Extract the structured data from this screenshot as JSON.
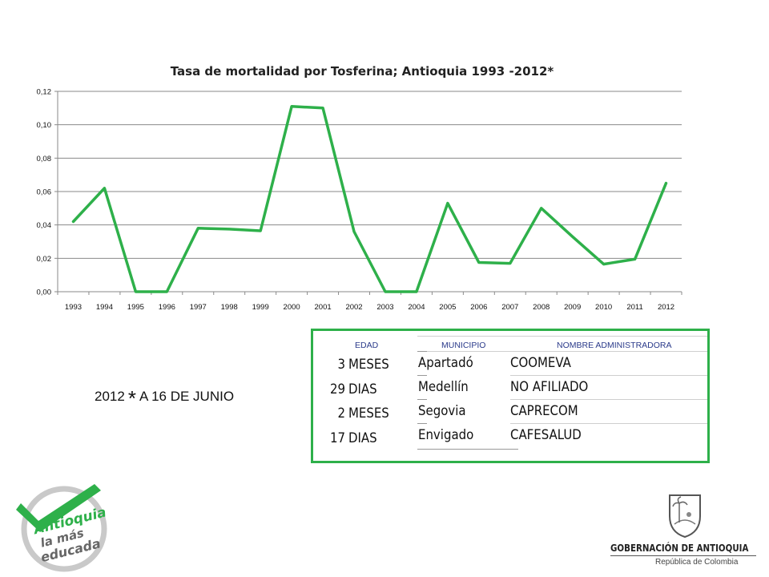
{
  "chart_data": {
    "type": "line",
    "title": "Tasa de mortalidad por Tosferina; Antioquia  1993 -2012*",
    "xlabel": "",
    "ylabel": "",
    "categories": [
      "1993",
      "1994",
      "1995",
      "1996",
      "1997",
      "1998",
      "1999",
      "2000",
      "2001",
      "2002",
      "2003",
      "2004",
      "2005",
      "2006",
      "2007",
      "2008",
      "2009",
      "2010",
      "2011",
      "2012"
    ],
    "series": [
      {
        "values": [
          0.042,
          0.062,
          0.0,
          0.0,
          0.038,
          0.0375,
          0.0365,
          0.111,
          0.11,
          0.036,
          0.0,
          0.0,
          0.053,
          0.0175,
          0.017,
          0.05,
          0.033,
          0.0165,
          0.0195,
          0.065
        ]
      }
    ],
    "ylim": [
      0,
      0.12
    ],
    "yticks": [
      "0,00",
      "0,02",
      "0,04",
      "0,06",
      "0,08",
      "0,10",
      "0,12"
    ],
    "grid": true,
    "line_color": "#2eb04a"
  },
  "note": {
    "year": "2012",
    "star": "*",
    "text": "A 16 DE JUNIO"
  },
  "cases": {
    "headers": {
      "edad": "EDAD",
      "municipio": "MUNICIPIO",
      "administradora": "NOMBRE  ADMINISTRADORA"
    },
    "rows": [
      {
        "edad_num": "3",
        "edad_unit": "MESES",
        "municipio": "Apartadó",
        "administradora": "COOMEVA"
      },
      {
        "edad_num": "29",
        "edad_unit": "DIAS",
        "municipio": "Medellín",
        "administradora": "NO AFILIADO"
      },
      {
        "edad_num": "2",
        "edad_unit": "MESES",
        "municipio": "Segovia",
        "administradora": "CAPRECOM"
      },
      {
        "edad_num": "17",
        "edad_unit": "DIAS",
        "municipio": "Envigado",
        "administradora": "CAFESALUD"
      }
    ]
  },
  "logo_left": {
    "line1": "Antioquia",
    "line2": "la más",
    "line3": "educada"
  },
  "logo_right": {
    "name": "GOBERNACIÓN DE ANTIOQUIA",
    "sub": "República de Colombia"
  }
}
